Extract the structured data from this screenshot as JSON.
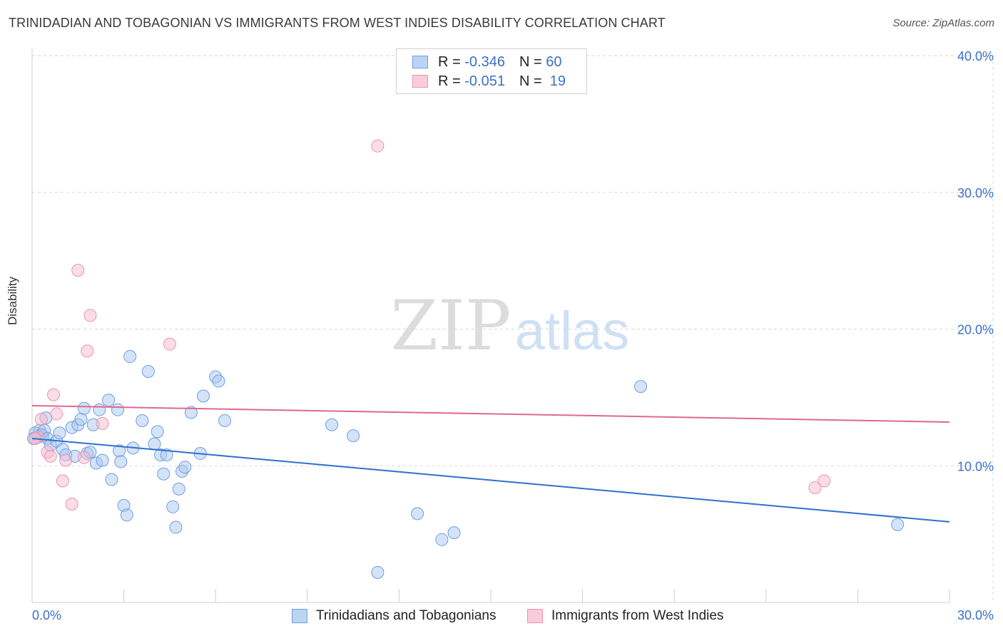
{
  "title": "TRINIDADIAN AND TOBAGONIAN VS IMMIGRANTS FROM WEST INDIES DISABILITY CORRELATION CHART",
  "source": "Source: ZipAtlas.com",
  "watermark": {
    "zip": "ZIP",
    "atlas": "atlas"
  },
  "legend": {
    "r_label": "R =",
    "n_label": "N =",
    "series1": {
      "r": "-0.346",
      "n": "60"
    },
    "series2": {
      "r": "-0.051",
      "n": "19"
    }
  },
  "colors": {
    "blue_fill": "#a9c7f0",
    "blue_stroke": "#6d9ee0",
    "blue_line": "#2f6fd0",
    "pink_fill": "#f7bcd0",
    "pink_stroke": "#ec92b0",
    "pink_line": "#e06890",
    "axis_text": "#3a70c8",
    "grid": "#d8d8d8"
  },
  "chart_data": {
    "type": "scatter",
    "title": "TRINIDADIAN AND TOBAGONIAN VS IMMIGRANTS FROM WEST INDIES DISABILITY CORRELATION CHART",
    "xlabel": "",
    "ylabel": "Disability",
    "xlim": [
      0,
      30
    ],
    "ylim": [
      0,
      41
    ],
    "x_tick_labels": [
      "0.0%",
      "30.0%"
    ],
    "y_ticks": [
      10,
      20,
      30,
      40
    ],
    "y_tick_labels": [
      "10.0%",
      "20.0%",
      "30.0%",
      "40.0%"
    ],
    "series": [
      {
        "name": "Trinidadians and Tobagonians",
        "color": "blue",
        "trend": {
          "x": [
            0,
            30
          ],
          "y": [
            12.0,
            5.9
          ]
        },
        "points": [
          {
            "x": 0.1,
            "y": 12.4
          },
          {
            "x": 0.2,
            "y": 12.1
          },
          {
            "x": 0.25,
            "y": 12.6
          },
          {
            "x": 0.3,
            "y": 12.3
          },
          {
            "x": 0.35,
            "y": 12.2
          },
          {
            "x": 0.4,
            "y": 12.6
          },
          {
            "x": 0.45,
            "y": 13.5
          },
          {
            "x": 0.5,
            "y": 12.0
          },
          {
            "x": 0.6,
            "y": 11.5
          },
          {
            "x": 0.8,
            "y": 11.8
          },
          {
            "x": 0.9,
            "y": 12.4
          },
          {
            "x": 1.0,
            "y": 11.2
          },
          {
            "x": 1.1,
            "y": 10.8
          },
          {
            "x": 1.3,
            "y": 12.8
          },
          {
            "x": 1.4,
            "y": 10.7
          },
          {
            "x": 1.5,
            "y": 13.0
          },
          {
            "x": 1.6,
            "y": 13.4
          },
          {
            "x": 1.7,
            "y": 14.2
          },
          {
            "x": 1.8,
            "y": 10.9
          },
          {
            "x": 1.9,
            "y": 11.0
          },
          {
            "x": 2.0,
            "y": 13.0
          },
          {
            "x": 2.1,
            "y": 10.2
          },
          {
            "x": 2.2,
            "y": 14.1
          },
          {
            "x": 2.3,
            "y": 10.4
          },
          {
            "x": 2.5,
            "y": 14.8
          },
          {
            "x": 2.6,
            "y": 9.0
          },
          {
            "x": 2.8,
            "y": 14.1
          },
          {
            "x": 2.85,
            "y": 11.1
          },
          {
            "x": 2.9,
            "y": 10.3
          },
          {
            "x": 3.0,
            "y": 7.1
          },
          {
            "x": 3.1,
            "y": 6.4
          },
          {
            "x": 3.2,
            "y": 18.0
          },
          {
            "x": 3.3,
            "y": 11.3
          },
          {
            "x": 3.6,
            "y": 13.3
          },
          {
            "x": 3.8,
            "y": 16.9
          },
          {
            "x": 4.0,
            "y": 11.6
          },
          {
            "x": 4.1,
            "y": 12.5
          },
          {
            "x": 4.2,
            "y": 10.8
          },
          {
            "x": 4.3,
            "y": 9.4
          },
          {
            "x": 4.4,
            "y": 10.8
          },
          {
            "x": 4.6,
            "y": 7.0
          },
          {
            "x": 4.7,
            "y": 5.5
          },
          {
            "x": 4.8,
            "y": 8.3
          },
          {
            "x": 4.9,
            "y": 9.6
          },
          {
            "x": 5.0,
            "y": 9.9
          },
          {
            "x": 5.2,
            "y": 13.9
          },
          {
            "x": 5.5,
            "y": 10.9
          },
          {
            "x": 5.6,
            "y": 15.1
          },
          {
            "x": 6.0,
            "y": 16.5
          },
          {
            "x": 6.1,
            "y": 16.2
          },
          {
            "x": 6.3,
            "y": 13.3
          },
          {
            "x": 9.8,
            "y": 13.0
          },
          {
            "x": 10.5,
            "y": 12.2
          },
          {
            "x": 11.3,
            "y": 2.2
          },
          {
            "x": 12.6,
            "y": 6.5
          },
          {
            "x": 13.4,
            "y": 4.6
          },
          {
            "x": 13.8,
            "y": 5.1
          },
          {
            "x": 19.9,
            "y": 15.8
          },
          {
            "x": 28.3,
            "y": 5.7
          },
          {
            "x": 0.05,
            "y": 12.0
          }
        ]
      },
      {
        "name": "Immigrants from West Indies",
        "color": "pink",
        "trend": {
          "x": [
            0,
            30
          ],
          "y": [
            14.4,
            13.2
          ]
        },
        "points": [
          {
            "x": 0.2,
            "y": 12.1
          },
          {
            "x": 0.3,
            "y": 13.4
          },
          {
            "x": 0.5,
            "y": 11.0
          },
          {
            "x": 0.6,
            "y": 10.7
          },
          {
            "x": 0.7,
            "y": 15.2
          },
          {
            "x": 0.8,
            "y": 13.8
          },
          {
            "x": 1.0,
            "y": 8.9
          },
          {
            "x": 1.1,
            "y": 10.4
          },
          {
            "x": 1.3,
            "y": 7.2
          },
          {
            "x": 1.5,
            "y": 24.3
          },
          {
            "x": 1.7,
            "y": 10.6
          },
          {
            "x": 1.8,
            "y": 18.4
          },
          {
            "x": 1.9,
            "y": 21.0
          },
          {
            "x": 2.3,
            "y": 13.1
          },
          {
            "x": 4.5,
            "y": 18.9
          },
          {
            "x": 11.3,
            "y": 33.4
          },
          {
            "x": 25.6,
            "y": 8.4
          },
          {
            "x": 25.9,
            "y": 8.9
          },
          {
            "x": 0.1,
            "y": 12.0
          }
        ]
      }
    ]
  }
}
